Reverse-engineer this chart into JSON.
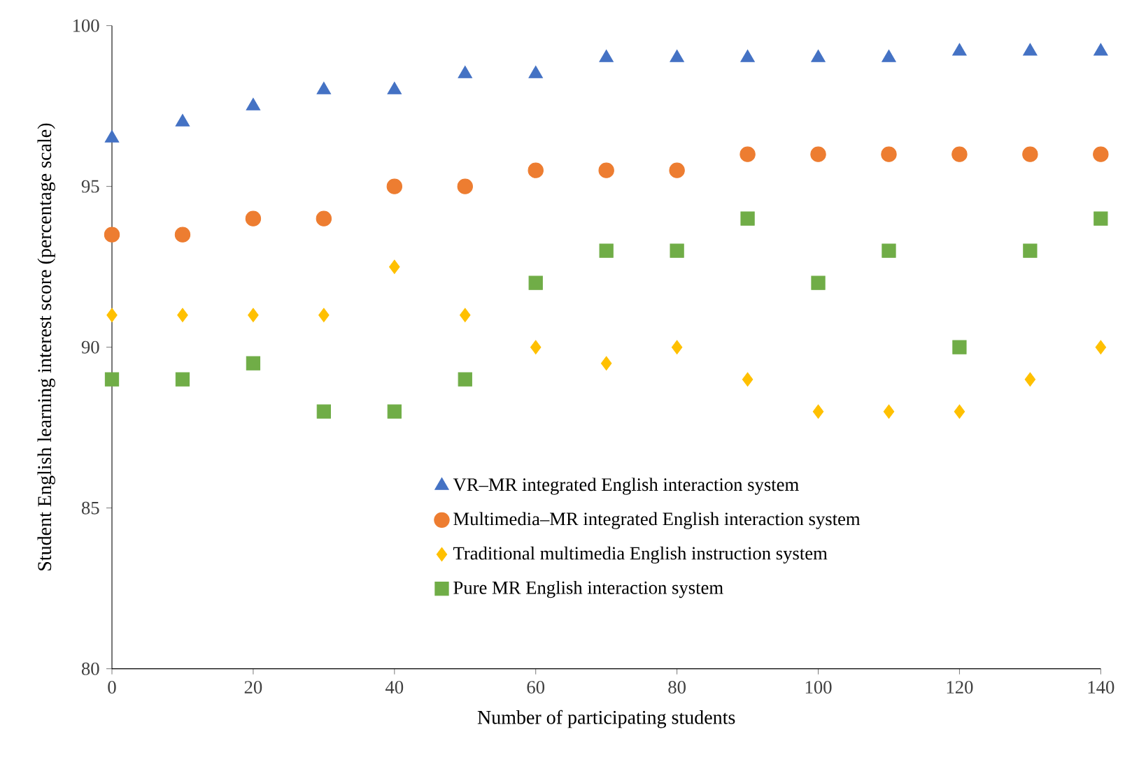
{
  "chart_data": {
    "type": "scatter",
    "xlabel": "Number of participating students",
    "ylabel": "Student English learning interest score (percentage scale)",
    "x": [
      0,
      10,
      20,
      30,
      40,
      50,
      60,
      70,
      80,
      90,
      100,
      110,
      120,
      130,
      140
    ],
    "series": [
      {
        "name": "VR–MR integrated English interaction system",
        "color": "#4472c4",
        "marker": "triangle",
        "values": [
          96.5,
          97,
          97.5,
          98,
          98,
          98.5,
          98.5,
          99,
          99,
          99,
          99,
          99,
          99.2,
          99.2,
          99.2
        ]
      },
      {
        "name": "Multimedia–MR integrated English interaction system",
        "color": "#ed7d31",
        "marker": "circle",
        "values": [
          93.5,
          93.5,
          94,
          94,
          95,
          95,
          95.5,
          95.5,
          95.5,
          96,
          96,
          96,
          96,
          96,
          96
        ]
      },
      {
        "name": "Traditional multimedia English instruction system",
        "color": "#ffc000",
        "marker": "diamond",
        "values": [
          91,
          91,
          91,
          91,
          92.5,
          91,
          90,
          89.5,
          90,
          89,
          88,
          88,
          88,
          89,
          90
        ]
      },
      {
        "name": "Pure MR English interaction system",
        "color": "#70ad47",
        "marker": "square",
        "values": [
          89,
          89,
          89.5,
          88,
          88,
          89,
          92,
          93,
          93,
          94,
          92,
          93,
          90,
          93,
          94
        ]
      }
    ],
    "xlim": [
      0,
      140
    ],
    "ylim": [
      80,
      100
    ],
    "xticks": [
      0,
      20,
      40,
      60,
      80,
      100,
      120,
      140
    ],
    "yticks": [
      80,
      85,
      90,
      95,
      100
    ],
    "grid": false,
    "legend": "bottom right"
  }
}
